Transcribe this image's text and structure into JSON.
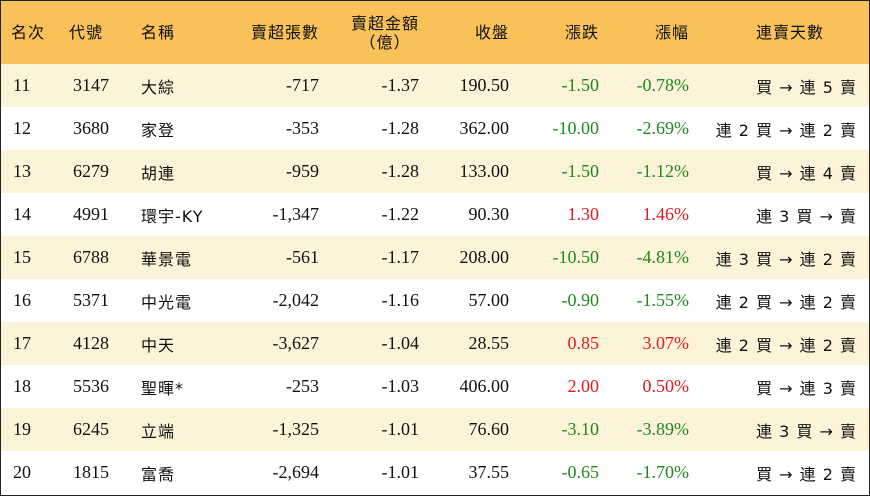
{
  "headers": {
    "rank": "名次",
    "code": "代號",
    "name": "名稱",
    "net_sell_lots": "賣超張數",
    "net_sell_amount_l1": "賣超金額",
    "net_sell_amount_l2": "（億）",
    "close": "收盤",
    "change": "漲跌",
    "change_pct": "漲幅",
    "streak": "連賣天數"
  },
  "colors": {
    "header_bg": "#f9c15a",
    "stripe_bg": "#fdf3d9",
    "down": "#1e8a1e",
    "up": "#e01b24"
  },
  "rows": [
    {
      "rank": "11",
      "code": "3147",
      "name": "大綜",
      "net_sell_lots": "-717",
      "net_sell_amount": "-1.37",
      "close": "190.50",
      "change": "-1.50",
      "change_pct": "-0.78%",
      "direction": "down",
      "streak": "買 → 連 5 賣"
    },
    {
      "rank": "12",
      "code": "3680",
      "name": "家登",
      "net_sell_lots": "-353",
      "net_sell_amount": "-1.28",
      "close": "362.00",
      "change": "-10.00",
      "change_pct": "-2.69%",
      "direction": "down",
      "streak": "連 2 買 → 連 2 賣"
    },
    {
      "rank": "13",
      "code": "6279",
      "name": "胡連",
      "net_sell_lots": "-959",
      "net_sell_amount": "-1.28",
      "close": "133.00",
      "change": "-1.50",
      "change_pct": "-1.12%",
      "direction": "down",
      "streak": "買 → 連 4 賣"
    },
    {
      "rank": "14",
      "code": "4991",
      "name": "環宇-KY",
      "net_sell_lots": "-1,347",
      "net_sell_amount": "-1.22",
      "close": "90.30",
      "change": "1.30",
      "change_pct": "1.46%",
      "direction": "up",
      "streak": "連 3 買 → 賣"
    },
    {
      "rank": "15",
      "code": "6788",
      "name": "華景電",
      "net_sell_lots": "-561",
      "net_sell_amount": "-1.17",
      "close": "208.00",
      "change": "-10.50",
      "change_pct": "-4.81%",
      "direction": "down",
      "streak": "連 3 買 → 連 2 賣"
    },
    {
      "rank": "16",
      "code": "5371",
      "name": "中光電",
      "net_sell_lots": "-2,042",
      "net_sell_amount": "-1.16",
      "close": "57.00",
      "change": "-0.90",
      "change_pct": "-1.55%",
      "direction": "down",
      "streak": "連 2 買 → 連 2 賣"
    },
    {
      "rank": "17",
      "code": "4128",
      "name": "中天",
      "net_sell_lots": "-3,627",
      "net_sell_amount": "-1.04",
      "close": "28.55",
      "change": "0.85",
      "change_pct": "3.07%",
      "direction": "up",
      "streak": "連 2 買 → 連 2 賣"
    },
    {
      "rank": "18",
      "code": "5536",
      "name": "聖暉*",
      "net_sell_lots": "-253",
      "net_sell_amount": "-1.03",
      "close": "406.00",
      "change": "2.00",
      "change_pct": "0.50%",
      "direction": "up",
      "streak": "買 → 連 3 賣"
    },
    {
      "rank": "19",
      "code": "6245",
      "name": "立端",
      "net_sell_lots": "-1,325",
      "net_sell_amount": "-1.01",
      "close": "76.60",
      "change": "-3.10",
      "change_pct": "-3.89%",
      "direction": "down",
      "streak": "連 3 買 → 賣"
    },
    {
      "rank": "20",
      "code": "1815",
      "name": "富喬",
      "net_sell_lots": "-2,694",
      "net_sell_amount": "-1.01",
      "close": "37.55",
      "change": "-0.65",
      "change_pct": "-1.70%",
      "direction": "down",
      "streak": "買 → 連 2 賣"
    }
  ]
}
